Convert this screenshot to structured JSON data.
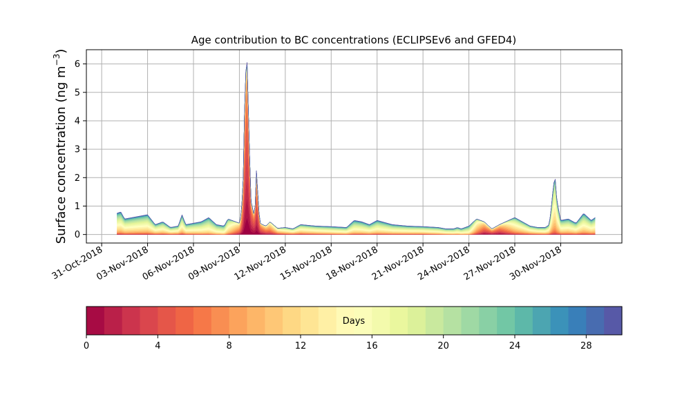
{
  "chart_data": {
    "type": "area",
    "stacked": true,
    "title": "Age contribution to BC concentrations (ECLIPSEv6 and GFED4)",
    "ylabel": "Surface concentration (ng m",
    "ylabel_sup": "−3",
    "ylabel_close": ")",
    "xlabel": "",
    "ylim": [
      -0.3,
      6.5
    ],
    "xlim": [
      "2018-10-30",
      "2018-12-04"
    ],
    "grid": true,
    "x_ticks": [
      "2018-10-31",
      "2018-11-03",
      "2018-11-06",
      "2018-11-09",
      "2018-11-12",
      "2018-11-15",
      "2018-11-18",
      "2018-11-21",
      "2018-11-24",
      "2018-11-27",
      "2018-11-30"
    ],
    "x_tick_labels": [
      "31-Oct-2018",
      "03-Nov-2018",
      "06-Nov-2018",
      "09-Nov-2018",
      "12-Nov-2018",
      "15-Nov-2018",
      "18-Nov-2018",
      "21-Nov-2018",
      "24-Nov-2018",
      "27-Nov-2018",
      "30-Nov-2018"
    ],
    "y_ticks": [
      0,
      1,
      2,
      3,
      4,
      5,
      6
    ],
    "y_tick_labels": [
      "0",
      "1",
      "2",
      "3",
      "4",
      "5",
      "6"
    ],
    "total": {
      "x": [
        "2018-11-01",
        "2018-11-01T06",
        "2018-11-01T12",
        "2018-11-02",
        "2018-11-02T12",
        "2018-11-03",
        "2018-11-03T12",
        "2018-11-04",
        "2018-11-04T12",
        "2018-11-05",
        "2018-11-05T06",
        "2018-11-05T12",
        "2018-11-06",
        "2018-11-06T12",
        "2018-11-07",
        "2018-11-07T12",
        "2018-11-08",
        "2018-11-08T06",
        "2018-11-08T12",
        "2018-11-08T18",
        "2018-11-09",
        "2018-11-09T03",
        "2018-11-09T06",
        "2018-11-09T09",
        "2018-11-09T12",
        "2018-11-09T18",
        "2018-11-10",
        "2018-11-10T03",
        "2018-11-10T06",
        "2018-11-10T09",
        "2018-11-10T12",
        "2018-11-10T18",
        "2018-11-11",
        "2018-11-11T12",
        "2018-11-12",
        "2018-11-12T12",
        "2018-11-13",
        "2018-11-14",
        "2018-11-15",
        "2018-11-16",
        "2018-11-16T12",
        "2018-11-17",
        "2018-11-17T12",
        "2018-11-18",
        "2018-11-19",
        "2018-11-20",
        "2018-11-21",
        "2018-11-22",
        "2018-11-22T12",
        "2018-11-23",
        "2018-11-23T06",
        "2018-11-23T12",
        "2018-11-24",
        "2018-11-24T12",
        "2018-11-25",
        "2018-11-25T12",
        "2018-11-26",
        "2018-11-27",
        "2018-11-28",
        "2018-11-28T12",
        "2018-11-29",
        "2018-11-29T06",
        "2018-11-29T09",
        "2018-11-29T12",
        "2018-11-29T15",
        "2018-11-29T18",
        "2018-11-30",
        "2018-11-30T12",
        "2018-12-01",
        "2018-12-01T12",
        "2018-12-02",
        "2018-12-02T06"
      ],
      "y": [
        0.75,
        0.8,
        0.55,
        0.6,
        0.65,
        0.7,
        0.35,
        0.45,
        0.25,
        0.3,
        0.7,
        0.35,
        0.4,
        0.45,
        0.6,
        0.35,
        0.3,
        0.55,
        0.5,
        0.45,
        0.4,
        0.7,
        2.0,
        5.5,
        6.2,
        1.2,
        0.6,
        2.4,
        0.9,
        0.4,
        0.35,
        0.3,
        0.45,
        0.22,
        0.25,
        0.2,
        0.35,
        0.3,
        0.28,
        0.25,
        0.5,
        0.45,
        0.35,
        0.5,
        0.35,
        0.3,
        0.28,
        0.25,
        0.2,
        0.2,
        0.25,
        0.2,
        0.3,
        0.55,
        0.45,
        0.2,
        0.35,
        0.6,
        0.3,
        0.25,
        0.25,
        0.35,
        0.9,
        1.6,
        2.1,
        1.2,
        0.5,
        0.55,
        0.4,
        0.75,
        0.5,
        0.6
      ]
    },
    "age_shares": {
      "x": [
        "2018-11-01",
        "2018-11-05",
        "2018-11-08",
        "2018-11-09T12",
        "2018-11-10T06",
        "2018-11-12",
        "2018-11-16",
        "2018-11-21",
        "2018-11-24",
        "2018-11-25",
        "2018-11-26",
        "2018-11-27",
        "2018-11-29",
        "2018-11-29T15",
        "2018-11-30",
        "2018-12-02T06"
      ],
      "mode_day": [
        16,
        16,
        18,
        2.5,
        4,
        14,
        17,
        16,
        18,
        6,
        5,
        14,
        16,
        14.5,
        16,
        16
      ],
      "spread_days": [
        6,
        6,
        5,
        4,
        4,
        6,
        6,
        6,
        5,
        5,
        5,
        6,
        6,
        5,
        6,
        6
      ]
    },
    "age_bins": 31,
    "colorbar": {
      "label": "Days",
      "min": 0,
      "max": 30,
      "ticks": [
        0,
        4,
        8,
        12,
        16,
        20,
        24,
        28
      ],
      "tick_labels": [
        "0",
        "4",
        "8",
        "12",
        "16",
        "20",
        "24",
        "28"
      ]
    },
    "colors": {
      "grid": "#b0b0b0",
      "axes": "#000000",
      "colormap": [
        "#9e0142",
        "#d53e4f",
        "#f46d43",
        "#fdae61",
        "#fee08b",
        "#ffffbf",
        "#e6f598",
        "#abdda4",
        "#66c2a5",
        "#3288bd",
        "#5e4fa2"
      ]
    }
  }
}
